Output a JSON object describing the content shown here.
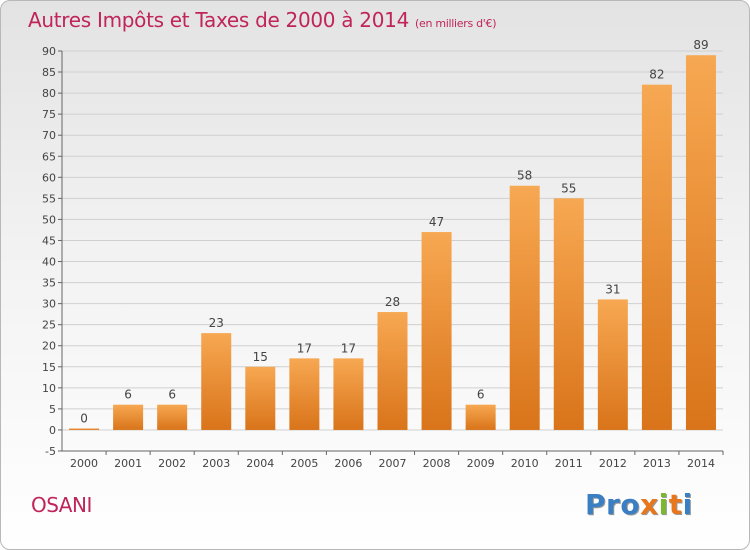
{
  "header": {
    "title": "Autres Impôts et Taxes de 2000 à 2014",
    "unit": "(en milliers d'€)"
  },
  "footer": {
    "commune": "OSANI",
    "logo_letters": [
      "P",
      "r",
      "o",
      "x",
      "i",
      "t",
      "i"
    ]
  },
  "colors": {
    "title": "#c0245a",
    "bar_top": "#f7a852",
    "bar_bottom": "#d9741a",
    "logo": [
      "#3a7fc4",
      "#3a7fc4",
      "#3a7fc4",
      "#e8761c",
      "#7cb82f",
      "#e8761c",
      "#3a7fc4"
    ]
  },
  "chart_data": {
    "type": "bar",
    "categories": [
      "2000",
      "2001",
      "2002",
      "2003",
      "2004",
      "2005",
      "2006",
      "2007",
      "2008",
      "2009",
      "2010",
      "2011",
      "2012",
      "2013",
      "2014"
    ],
    "values": [
      0,
      6,
      6,
      23,
      15,
      17,
      17,
      28,
      47,
      6,
      58,
      55,
      31,
      82,
      89
    ],
    "data_labels": [
      "0",
      "6",
      "6",
      "23",
      "15",
      "17",
      "17",
      "28",
      "47",
      "6",
      "58",
      "55",
      "31",
      "82",
      "89"
    ],
    "yticks": [
      "-5",
      "0",
      "5",
      "10",
      "15",
      "20",
      "25",
      "30",
      "35",
      "40",
      "45",
      "50",
      "55",
      "60",
      "65",
      "70",
      "75",
      "80",
      "85",
      "90"
    ],
    "ylim": [
      -5,
      90
    ],
    "grid": true,
    "legend": "none"
  }
}
